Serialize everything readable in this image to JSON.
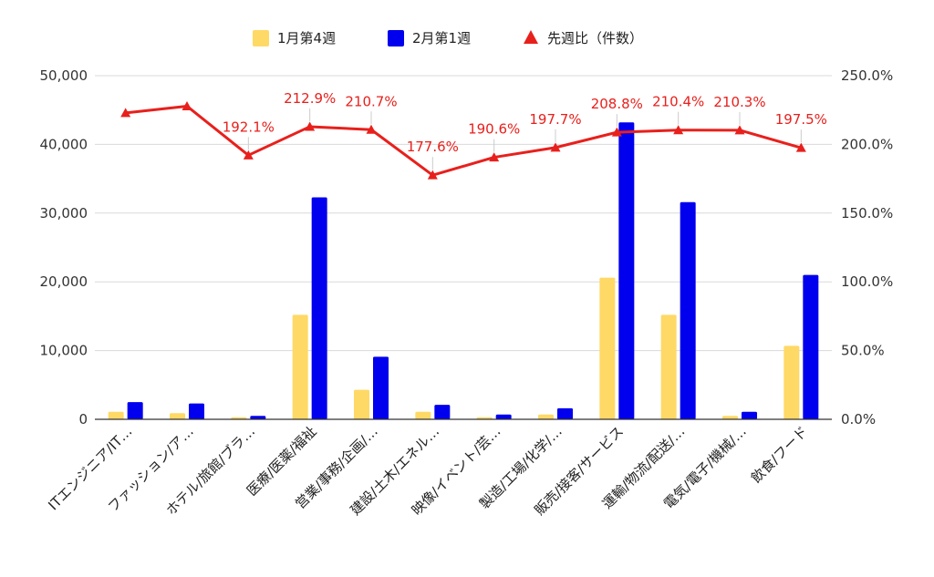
{
  "chart_data": {
    "type": "bar",
    "categories": [
      "ITエンジニア/IT…",
      "ファッション/ア…",
      "ホテル/旅館/ブラ…",
      "医療/医薬/福祉",
      "営業/事務/企画/…",
      "建設/土木/エネル…",
      "映像/イベント/芸…",
      "製造/工場/化学/…",
      "販売/接客/サービス",
      "運輸/物流/配送/…",
      "電気/電子/機械/…",
      "飲食/フード"
    ],
    "series": [
      {
        "name": "1月第4週",
        "type": "bar",
        "axis": "left",
        "color": "#ffd966",
        "values": [
          1100,
          900,
          300,
          15200,
          4300,
          1100,
          300,
          700,
          20600,
          15200,
          500,
          10700
        ]
      },
      {
        "name": "2月第1週",
        "type": "bar",
        "axis": "left",
        "color": "#0000ee",
        "values": [
          2500,
          2300,
          500,
          32300,
          9100,
          2100,
          700,
          1600,
          43200,
          31600,
          1100,
          21000
        ]
      },
      {
        "name": "先週比（件数）",
        "type": "line",
        "axis": "right",
        "color": "#e8201c",
        "values": [
          222.9,
          227.8,
          192.1,
          212.9,
          210.7,
          177.6,
          190.6,
          197.7,
          208.8,
          210.4,
          210.3,
          197.5
        ],
        "labels": [
          "",
          "",
          "192.1%",
          "212.9%",
          "210.7%",
          "177.6%",
          "190.6%",
          "197.7%",
          "208.8%",
          "210.4%",
          "210.3%",
          "197.5%"
        ]
      }
    ],
    "y_left": {
      "min": 0,
      "max": 50000,
      "ticks": [
        "0",
        "10,000",
        "20,000",
        "30,000",
        "40,000",
        "50,000"
      ]
    },
    "y_right": {
      "min": 0,
      "max": 250,
      "ticks": [
        "0.0%",
        "50.0%",
        "100.0%",
        "150.0%",
        "200.0%",
        "250.0%"
      ]
    },
    "grid": true,
    "legend_position": "top-center",
    "title": "",
    "xlabel": "",
    "ylabel": ""
  }
}
